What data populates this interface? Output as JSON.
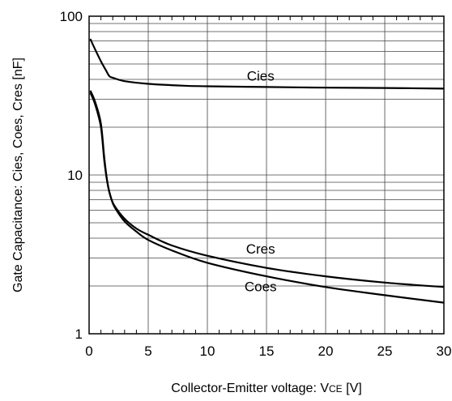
{
  "chart_data": {
    "type": "line",
    "title": "",
    "xlabel": "Collector-Emitter voltage: V",
    "xlabel_sub": "CE",
    "xlabel_unit": " [V]",
    "ylabel": "Gate Capacitance: Cies, Coes, Cres [nF]",
    "xlim": [
      0,
      30
    ],
    "ylim": [
      1,
      100
    ],
    "yscale": "log",
    "grid": true,
    "x_ticks": [
      0,
      5,
      10,
      15,
      20,
      25,
      30
    ],
    "x_tick_labels": [
      "0",
      "5",
      "10",
      "15",
      "20",
      "25",
      "30"
    ],
    "y_ticks": [
      1,
      10,
      100
    ],
    "y_tick_labels": [
      "1",
      "10",
      "100"
    ],
    "series": [
      {
        "name": "Cies",
        "x": [
          0.1,
          0.5,
          1.0,
          1.4,
          1.7,
          2.0,
          3,
          5,
          8,
          10,
          15,
          20,
          25,
          30
        ],
        "y": [
          72,
          62,
          52,
          46,
          42,
          41,
          39,
          37.5,
          36.5,
          36.2,
          35.8,
          35.5,
          35.3,
          35.0
        ]
      },
      {
        "name": "Cres",
        "x": [
          0.1,
          0.5,
          1.0,
          1.3,
          1.6,
          1.9,
          2.2,
          3,
          4,
          5,
          7,
          10,
          15,
          20,
          25,
          30
        ],
        "y": [
          33,
          28,
          20,
          12,
          8.5,
          7.0,
          6.3,
          5.3,
          4.6,
          4.2,
          3.6,
          3.1,
          2.6,
          2.3,
          2.1,
          1.97
        ]
      },
      {
        "name": "Coes",
        "x": [
          0.1,
          0.5,
          1.0,
          1.3,
          1.6,
          1.9,
          2.2,
          3,
          4,
          5,
          7,
          10,
          15,
          20,
          25,
          30
        ],
        "y": [
          34,
          29,
          21,
          12.5,
          8.5,
          7.0,
          6.2,
          5.1,
          4.4,
          3.9,
          3.35,
          2.8,
          2.3,
          1.97,
          1.75,
          1.57
        ]
      }
    ],
    "series_label_positions": [
      "above-line-center",
      "above-line-center",
      "below-line-center"
    ]
  }
}
